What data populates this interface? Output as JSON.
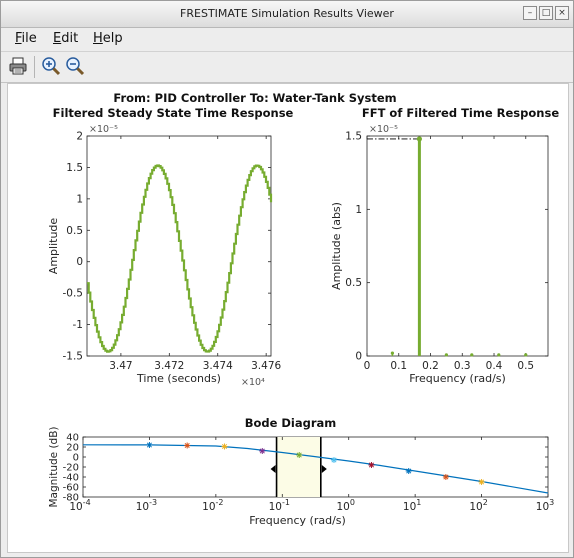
{
  "window": {
    "title": "FRESTIMATE Simulation Results Viewer",
    "controls": [
      "–",
      "□",
      "×"
    ]
  },
  "menu": [
    {
      "label": "File",
      "mnemonic": "F",
      "rest": "ile"
    },
    {
      "label": "Edit",
      "mnemonic": "E",
      "rest": "dit"
    },
    {
      "label": "Help",
      "mnemonic": "H",
      "rest": "elp"
    }
  ],
  "toolbar": {
    "print_icon": "printer-icon",
    "zoom_in_icon": "zoom-in-icon",
    "zoom_out_icon": "zoom-out-icon"
  },
  "figure": {
    "supertitle": "From: PID Controller  To: Water-Tank System"
  },
  "chart_data": [
    {
      "type": "line",
      "title": "Filtered Steady State Time Response",
      "xlabel": "Time (seconds)",
      "ylabel": "Amplitude",
      "x_multiplier": "×10⁴",
      "y_multiplier": "×10⁻⁵",
      "xlim": [
        3.4686,
        3.4762
      ],
      "ylim": [
        -1.5,
        2
      ],
      "xticks": [
        3.47,
        3.472,
        3.474,
        3.476
      ],
      "xtick_labels": [
        "3.47",
        "3.472",
        "3.474",
        "3.476"
      ],
      "yticks": [
        -1.5,
        -1,
        -0.5,
        0,
        0.5,
        1,
        1.5,
        2
      ],
      "ytick_labels": [
        "-1.5",
        "-1",
        "-0.5",
        "0",
        "0.5",
        "1",
        "1.5",
        "2"
      ],
      "series": [
        {
          "color": "#77ac30",
          "shape": "staircase sinusoid",
          "amplitude": 1.48,
          "offset": 0.05,
          "first_peak_x": 3.4715,
          "period": 0.0041
        }
      ]
    },
    {
      "type": "bar",
      "title": "FFT of Filtered Time Response",
      "xlabel": "Frequency (rad/s)",
      "ylabel": "Amplitude (abs)",
      "y_multiplier": "×10⁻⁵",
      "xlim": [
        0,
        0.57
      ],
      "ylim": [
        0,
        1.5
      ],
      "xticks": [
        0,
        0.1,
        0.2,
        0.3,
        0.4,
        0.5
      ],
      "xtick_labels": [
        "0",
        "0.1",
        "0.2",
        "0.3",
        "0.4",
        "0.5"
      ],
      "yticks": [
        0,
        0.5,
        1,
        1.5
      ],
      "ytick_labels": [
        "0",
        "0.5",
        "1",
        "1.5"
      ],
      "stems": [
        {
          "x": 0.08,
          "y": 0.02
        },
        {
          "x": 0.165,
          "y": 1.48
        },
        {
          "x": 0.25,
          "y": 0.008
        },
        {
          "x": 0.33,
          "y": 0.008
        },
        {
          "x": 0.415,
          "y": 0.008
        },
        {
          "x": 0.5,
          "y": 0.008
        }
      ],
      "reference_line": {
        "y": 1.48,
        "style": "dash-dot",
        "color": "#000000"
      },
      "color": "#77ac30"
    },
    {
      "type": "line",
      "title": "Bode Diagram",
      "xlabel": "Frequency  (rad/s)",
      "ylabel": "Magnitude (dB)",
      "xscale": "log",
      "xlim": [
        0.0001,
        1000
      ],
      "ylim": [
        -80,
        40
      ],
      "xticks": [
        0.0001,
        0.001,
        0.01,
        0.1,
        1,
        10,
        100,
        1000
      ],
      "xtick_labels": [
        [
          "10",
          "-4"
        ],
        [
          "10",
          "-3"
        ],
        [
          "10",
          "-2"
        ],
        [
          "10",
          "-1"
        ],
        [
          "10",
          "0"
        ],
        [
          "10",
          "1"
        ],
        [
          "10",
          "2"
        ],
        [
          "10",
          "3"
        ]
      ],
      "yticks": [
        -80,
        -60,
        -40,
        -20,
        0,
        20,
        40
      ],
      "ytick_labels": [
        "-80",
        "-60",
        "-40",
        "-20",
        "0",
        "20",
        "40"
      ],
      "series": [
        {
          "color": "#0072bd",
          "x": [
            0.0001,
            0.001,
            0.01,
            0.03,
            0.1,
            0.3,
            1,
            3,
            10,
            100,
            1000
          ],
          "y": [
            24.5,
            24.3,
            22,
            17,
            9,
            1,
            -8,
            -17,
            -28,
            -49,
            -72
          ]
        }
      ],
      "markers": [
        {
          "x": 0.001,
          "y": 24,
          "color": "#0072bd"
        },
        {
          "x": 0.0037,
          "y": 23,
          "color": "#d95319"
        },
        {
          "x": 0.0135,
          "y": 21,
          "color": "#edb120"
        },
        {
          "x": 0.05,
          "y": 12,
          "color": "#7e2f8e"
        },
        {
          "x": 0.18,
          "y": 4,
          "color": "#77ac30"
        },
        {
          "x": 0.6,
          "y": -6,
          "color": "#4dbeee"
        },
        {
          "x": 2.2,
          "y": -16,
          "color": "#a2142f"
        },
        {
          "x": 8,
          "y": -28,
          "color": "#0072bd"
        },
        {
          "x": 29,
          "y": -40,
          "color": "#d95319"
        },
        {
          "x": 100,
          "y": -50,
          "color": "#edb120"
        }
      ],
      "highlight_band": {
        "x_from": 0.082,
        "x_to": 0.38,
        "color": "#fcfce6"
      }
    }
  ]
}
